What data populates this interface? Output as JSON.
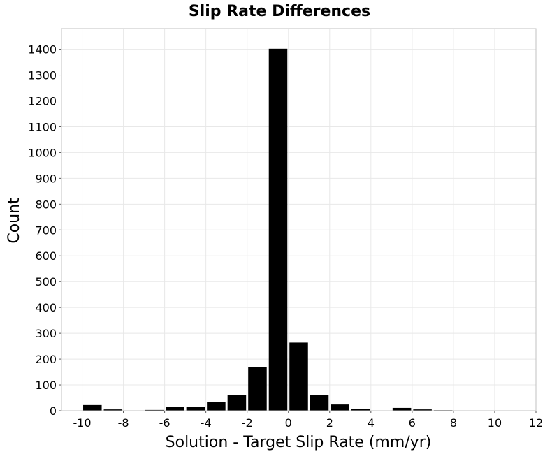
{
  "chart_data": {
    "type": "bar",
    "title": "Slip Rate Differences",
    "xlabel": "Solution - Target Slip Rate (mm/yr)",
    "ylabel": "Count",
    "xlim": [
      -11,
      12
    ],
    "ylim": [
      0,
      1480
    ],
    "x_ticks": [
      -10,
      -8,
      -6,
      -4,
      -2,
      0,
      2,
      4,
      6,
      8,
      10,
      12
    ],
    "x_tick_labels": [
      "-10",
      "-8",
      "-6",
      "-4",
      "-2",
      "0",
      "2",
      "4",
      "6",
      "8",
      "10",
      "12"
    ],
    "y_ticks": [
      0,
      100,
      200,
      300,
      400,
      500,
      600,
      700,
      800,
      900,
      1000,
      1100,
      1200,
      1300,
      1400
    ],
    "y_tick_labels": [
      "0",
      "100",
      "200",
      "300",
      "400",
      "500",
      "600",
      "700",
      "800",
      "900",
      "1000",
      "1100",
      "1200",
      "1300",
      "1400"
    ],
    "bin_width": 1,
    "x": [
      -9.5,
      -8.5,
      -7.5,
      -6.5,
      -5.5,
      -4.5,
      -3.5,
      -2.5,
      -1.5,
      -0.5,
      0.5,
      1.5,
      2.5,
      3.5,
      4.5,
      5.5,
      6.5,
      7.5,
      8.5,
      9.5,
      10.5
    ],
    "values": [
      22,
      5,
      0,
      3,
      16,
      14,
      33,
      61,
      168,
      1402,
      264,
      60,
      24,
      7,
      0,
      11,
      5,
      2,
      0,
      0,
      0
    ],
    "grid": true,
    "colors": {
      "bar": "#000000",
      "grid": "#e8e8e8",
      "frame": "#c0c0c0"
    }
  }
}
